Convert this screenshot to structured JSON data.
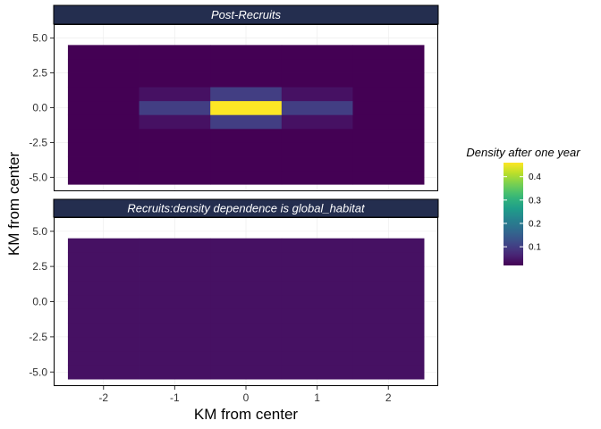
{
  "chart_data": {
    "type": "heatmap",
    "xlabel": "KM from center",
    "ylabel": "KM from center",
    "x_ticks": [
      -2,
      -1,
      0,
      1,
      2
    ],
    "y_ticks": [
      5.0,
      2.5,
      0.0,
      -2.5,
      -5.0
    ],
    "y_tick_labels": [
      "5.0",
      "2.5",
      "0.0",
      "-2.5",
      "-5.0"
    ],
    "x_tick_labels": [
      "-2",
      "-1",
      "0",
      "1",
      "2"
    ],
    "x_range": [
      -2.7,
      2.7
    ],
    "y_range": [
      -6,
      6
    ],
    "x_cells": [
      -2,
      -1,
      0,
      1,
      2
    ],
    "y_cells": [
      -5,
      -4,
      -3,
      -2,
      -1,
      0,
      1,
      2,
      3,
      4
    ],
    "cell_size": 1,
    "grid": true,
    "legend": {
      "title": "Density after one year",
      "placement": "right",
      "min": 0.02,
      "max": 0.46,
      "ticks": [
        0.1,
        0.2,
        0.3,
        0.4
      ],
      "tick_labels": [
        "0.1",
        "0.2",
        "0.3",
        "0.4"
      ],
      "colormap": "viridis"
    },
    "facets": [
      {
        "label": "Post-Recruits",
        "grid": [
          [
            0.02,
            0.02,
            0.02,
            0.02,
            0.02
          ],
          [
            0.02,
            0.02,
            0.02,
            0.02,
            0.02
          ],
          [
            0.02,
            0.02,
            0.02,
            0.02,
            0.02
          ],
          [
            0.02,
            0.02,
            0.02,
            0.02,
            0.02
          ],
          [
            0.02,
            0.04,
            0.1,
            0.04,
            0.02
          ],
          [
            0.02,
            0.1,
            0.46,
            0.1,
            0.02
          ],
          [
            0.02,
            0.04,
            0.1,
            0.04,
            0.02
          ],
          [
            0.02,
            0.02,
            0.02,
            0.02,
            0.02
          ],
          [
            0.02,
            0.02,
            0.02,
            0.02,
            0.02
          ],
          [
            0.02,
            0.02,
            0.02,
            0.02,
            0.02
          ]
        ]
      },
      {
        "label": "Recruits:density dependence is global_habitat",
        "grid": [
          [
            0.04,
            0.04,
            0.04,
            0.04,
            0.04
          ],
          [
            0.04,
            0.04,
            0.04,
            0.04,
            0.04
          ],
          [
            0.04,
            0.04,
            0.04,
            0.04,
            0.04
          ],
          [
            0.04,
            0.04,
            0.04,
            0.04,
            0.04
          ],
          [
            0.04,
            0.04,
            0.04,
            0.04,
            0.04
          ],
          [
            0.04,
            0.04,
            0.04,
            0.04,
            0.04
          ],
          [
            0.04,
            0.04,
            0.04,
            0.04,
            0.04
          ],
          [
            0.04,
            0.04,
            0.04,
            0.04,
            0.04
          ],
          [
            0.04,
            0.04,
            0.04,
            0.04,
            0.04
          ],
          [
            0.04,
            0.04,
            0.04,
            0.04,
            0.04
          ]
        ]
      }
    ]
  },
  "colors": {
    "strip_bg": "#242e4f",
    "panel_border": "#000000",
    "grid_line": "#ebebeb"
  }
}
